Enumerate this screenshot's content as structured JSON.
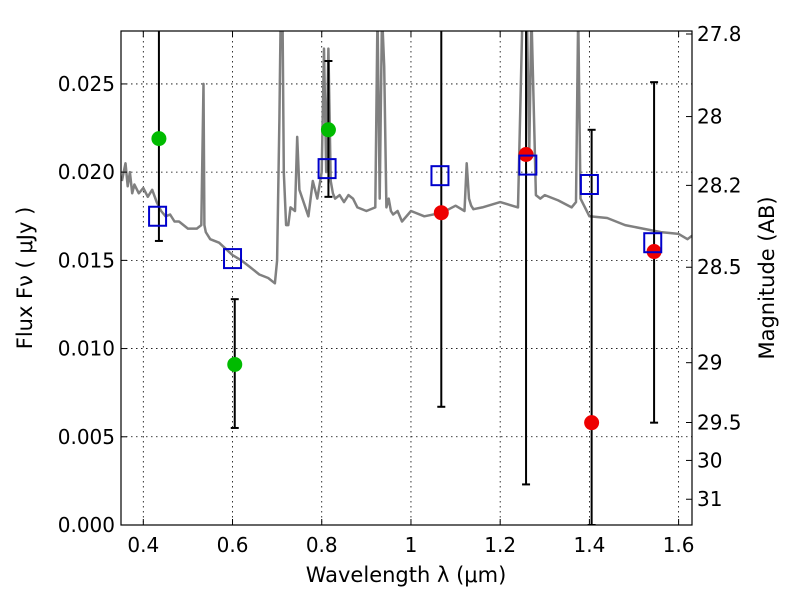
{
  "chart_data": {
    "type": "scatter",
    "title": "",
    "xlabel": "Wavelength  λ (μm)",
    "ylabel": "Flux  Fν  ( μJy )",
    "y2label": "Magnitude (AB)",
    "xlim": [
      0.35,
      1.63
    ],
    "ylim": [
      0.0,
      0.028
    ],
    "grid": true,
    "xticks": [
      {
        "v": 0.4,
        "label": "0.4"
      },
      {
        "v": 0.6,
        "label": "0.6"
      },
      {
        "v": 0.8,
        "label": "0.8"
      },
      {
        "v": 1.0,
        "label": "1"
      },
      {
        "v": 1.2,
        "label": "1.2"
      },
      {
        "v": 1.4,
        "label": "1.4"
      },
      {
        "v": 1.6,
        "label": "1.6"
      }
    ],
    "yticks": [
      {
        "v": 0.0,
        "label": "0.000"
      },
      {
        "v": 0.005,
        "label": "0.005"
      },
      {
        "v": 0.01,
        "label": "0.010"
      },
      {
        "v": 0.015,
        "label": "0.015"
      },
      {
        "v": 0.02,
        "label": "0.020"
      },
      {
        "v": 0.025,
        "label": "0.025"
      }
    ],
    "y2ticks": [
      {
        "label": "27.8",
        "flux": 0.02783
      },
      {
        "label": "28",
        "flux": 0.02315
      },
      {
        "label": "28.2",
        "flux": 0.01925
      },
      {
        "label": "28.5",
        "flux": 0.01461
      },
      {
        "label": "29",
        "flux": 0.0092
      },
      {
        "label": "29.5",
        "flux": 0.00581
      },
      {
        "label": "30",
        "flux": 0.00366
      },
      {
        "label": "31",
        "flux": 0.00146
      }
    ],
    "model_sed": {
      "name": "model spectrum",
      "color": "#808080",
      "x": [
        0.352,
        0.36,
        0.365,
        0.37,
        0.375,
        0.38,
        0.39,
        0.4,
        0.41,
        0.42,
        0.43,
        0.44,
        0.45,
        0.46,
        0.47,
        0.48,
        0.5,
        0.52,
        0.53,
        0.535,
        0.537,
        0.54,
        0.55,
        0.57,
        0.6,
        0.62,
        0.64,
        0.66,
        0.68,
        0.695,
        0.7,
        0.705,
        0.708,
        0.712,
        0.715,
        0.72,
        0.725,
        0.73,
        0.74,
        0.745,
        0.75,
        0.77,
        0.78,
        0.79,
        0.8,
        0.805,
        0.81,
        0.815,
        0.82,
        0.825,
        0.83,
        0.84,
        0.85,
        0.86,
        0.87,
        0.88,
        0.9,
        0.92,
        0.925,
        0.93,
        0.935,
        0.94,
        0.945,
        0.95,
        0.955,
        0.96,
        0.97,
        0.98,
        1.0,
        1.03,
        1.07,
        1.1,
        1.12,
        1.125,
        1.13,
        1.135,
        1.14,
        1.16,
        1.2,
        1.24,
        1.25,
        1.26,
        1.265,
        1.27,
        1.275,
        1.28,
        1.29,
        1.3,
        1.33,
        1.36,
        1.37,
        1.375,
        1.38,
        1.4,
        1.44,
        1.48,
        1.52,
        1.56,
        1.6,
        1.62,
        1.63
      ],
      "y": [
        0.0195,
        0.0205,
        0.0192,
        0.02,
        0.0188,
        0.0193,
        0.0188,
        0.0191,
        0.0186,
        0.019,
        0.0183,
        0.0178,
        0.0175,
        0.0176,
        0.0172,
        0.0172,
        0.0168,
        0.0168,
        0.017,
        0.025,
        0.017,
        0.0166,
        0.0162,
        0.016,
        0.0153,
        0.015,
        0.0146,
        0.0142,
        0.014,
        0.0137,
        0.015,
        0.023,
        0.029,
        0.029,
        0.02,
        0.017,
        0.017,
        0.018,
        0.0178,
        0.022,
        0.019,
        0.0175,
        0.0195,
        0.0185,
        0.02,
        0.027,
        0.02,
        0.027,
        0.0195,
        0.0188,
        0.0185,
        0.0187,
        0.0183,
        0.0187,
        0.0185,
        0.018,
        0.0178,
        0.018,
        0.029,
        0.0185,
        0.029,
        0.026,
        0.018,
        0.0185,
        0.0178,
        0.0176,
        0.0178,
        0.0172,
        0.0178,
        0.0175,
        0.0177,
        0.0181,
        0.0178,
        0.0205,
        0.0185,
        0.0181,
        0.0179,
        0.018,
        0.0183,
        0.018,
        0.029,
        0.029,
        0.021,
        0.029,
        0.024,
        0.0187,
        0.0185,
        0.0187,
        0.0184,
        0.018,
        0.0183,
        0.029,
        0.0185,
        0.0175,
        0.0174,
        0.017,
        0.0168,
        0.0166,
        0.0165,
        0.0162,
        0.0164
      ]
    },
    "series": [
      {
        "name": "observed (green)",
        "color": "#00bb00",
        "marker": "circle",
        "x": [
          0.435,
          0.605,
          0.815
        ],
        "y": [
          0.0219,
          0.0091,
          0.0224
        ]
      },
      {
        "name": "observed (red)",
        "color": "#ee0000",
        "marker": "circle",
        "x": [
          1.068,
          1.258,
          1.405,
          1.545
        ],
        "y": [
          0.0177,
          0.021,
          0.0058,
          0.0155
        ]
      },
      {
        "name": "model photometry",
        "color": "#0000cc",
        "marker": "square",
        "x": [
          0.432,
          0.6,
          0.812,
          1.065,
          1.262,
          1.4,
          1.542
        ],
        "y": [
          0.0175,
          0.0151,
          0.0202,
          0.0198,
          0.0204,
          0.0193,
          0.016
        ]
      }
    ],
    "errorbars": [
      {
        "x": 0.435,
        "low": 0.0161,
        "high": 0.0285
      },
      {
        "x": 0.605,
        "low": 0.0055,
        "high": 0.0128
      },
      {
        "x": 0.815,
        "low": 0.0186,
        "high": 0.0263
      },
      {
        "x": 1.068,
        "low": 0.0067,
        "high": 0.0285
      },
      {
        "x": 1.258,
        "low": 0.0023,
        "high": 0.0285
      },
      {
        "x": 1.405,
        "low": 0.0,
        "high": 0.0224
      },
      {
        "x": 1.545,
        "low": 0.0058,
        "high": 0.0251
      }
    ]
  }
}
